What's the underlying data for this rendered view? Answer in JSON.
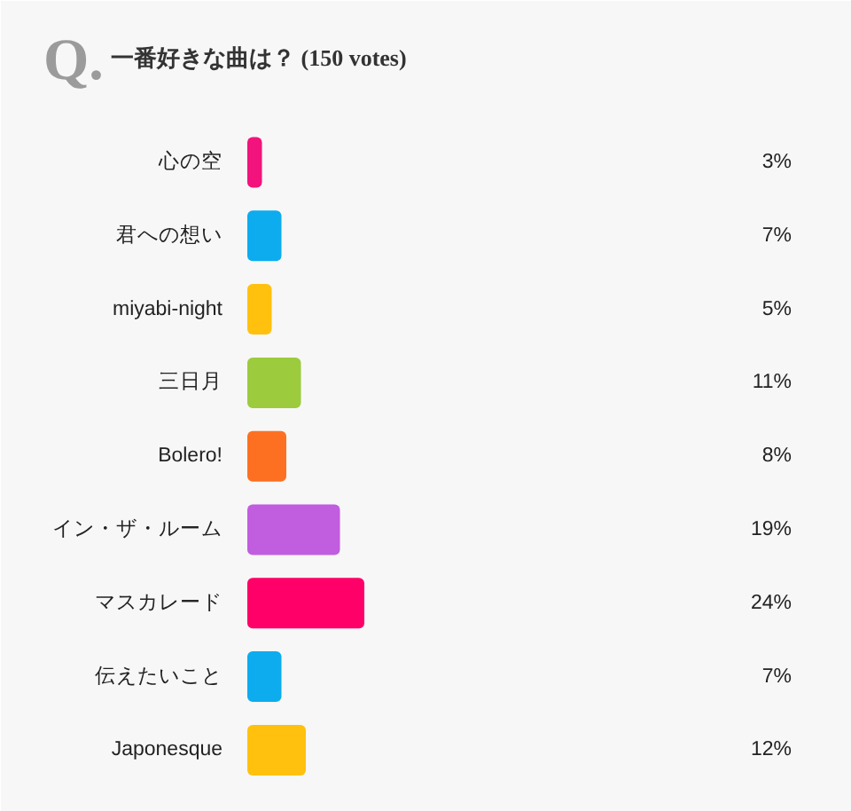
{
  "chart_data": {
    "type": "bar",
    "orientation": "horizontal",
    "title": "一番好きな曲は？ (150 votes)",
    "annotations": [
      "Q."
    ],
    "categories": [
      "心の空",
      "君への想い",
      "miyabi-night",
      "三日月",
      "Bolero!",
      "イン・ザ・ルーム",
      "マスカレード",
      "伝えたいこと",
      "Japonesque"
    ],
    "values": [
      3,
      7,
      5,
      11,
      8,
      19,
      24,
      7,
      12
    ],
    "colors": [
      "#f2137c",
      "#0cacef",
      "#ffc10e",
      "#9ccb3e",
      "#fe7021",
      "#c15ddf",
      "#fe0068",
      "#0cacef",
      "#ffc10e"
    ],
    "value_labels": [
      "3%",
      "7%",
      "5%",
      "11%",
      "8%",
      "19%",
      "24%",
      "7%",
      "12%"
    ]
  }
}
